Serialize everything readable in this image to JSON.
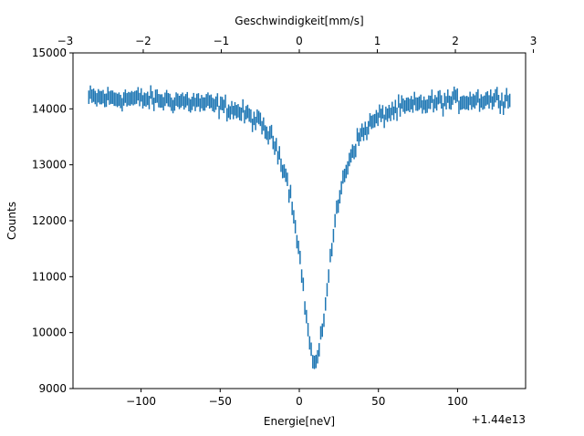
{
  "chart_data": {
    "type": "scatter",
    "style": "errorbar",
    "xlabel": "Energie[neV]",
    "ylabel": "Counts",
    "top_xlabel": "Geschwindigkeit[mm/s]",
    "offset_text": "+1.44e13",
    "xlim": [
      -143,
      143
    ],
    "ylim": [
      9000,
      15000
    ],
    "top_xlim": [
      -2.9,
      2.9
    ],
    "x_ticks": [
      -100,
      -50,
      0,
      50,
      100
    ],
    "x_tick_labels": [
      "−100",
      "−50",
      "0",
      "50",
      "100"
    ],
    "top_ticks": [
      -3,
      -2,
      -1,
      0,
      1,
      2,
      3
    ],
    "top_tick_labels": [
      "−3",
      "−2",
      "−1",
      "0",
      "1",
      "2",
      "3"
    ],
    "y_ticks": [
      9000,
      10000,
      11000,
      12000,
      13000,
      14000,
      15000
    ],
    "y_tick_labels": [
      "9000",
      "10000",
      "11000",
      "12000",
      "13000",
      "14000",
      "15000"
    ],
    "grid": false,
    "series": [
      {
        "color": "#1f77b4",
        "x_range": [
          -133,
          133
        ],
        "n_points": 266,
        "baseline": 14230,
        "dip_center": 10,
        "dip_depth": 4780,
        "dip_hwhm": 12,
        "errorbar_half_height": 120,
        "noise_amplitude": 180
      }
    ]
  }
}
